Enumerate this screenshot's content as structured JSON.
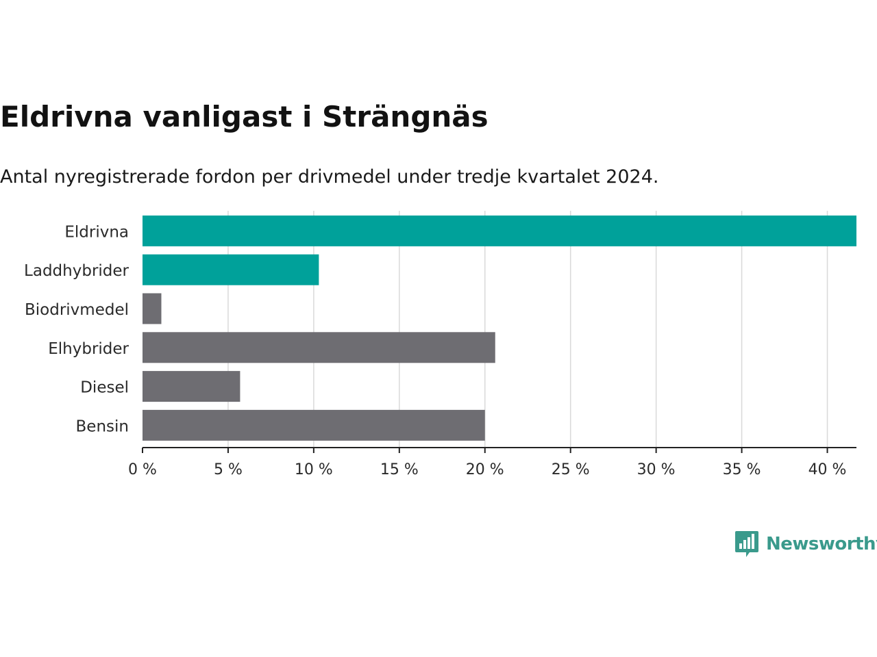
{
  "chart_data": {
    "type": "bar",
    "orientation": "horizontal",
    "title": "Eldrivna vanligast i Strängnäs",
    "subtitle": "Antal nyregistrerade fordon per drivmedel under tredje kvartalet 2024.",
    "categories": [
      "Eldrivna",
      "Laddhybrider",
      "Biodrivmedel",
      "Elhybrider",
      "Diesel",
      "Bensin"
    ],
    "values": [
      41.7,
      10.3,
      1.1,
      20.6,
      5.7,
      20.0
    ],
    "value_unit": "%",
    "xlim": [
      0,
      41.7
    ],
    "xticks": [
      0,
      5,
      10,
      15,
      20,
      25,
      30,
      35,
      40
    ],
    "xtick_labels": [
      "0 %",
      "5 %",
      "10 %",
      "15 %",
      "20 %",
      "25 %",
      "30 %",
      "35 %",
      "40 %"
    ],
    "grid": "vertical",
    "colors": {
      "highlight": "#00a19a",
      "default": "#6e6d72",
      "grid": "#d9d9d9",
      "axis": "#222222",
      "label": "#2a2a2a"
    },
    "highlighted": [
      "Eldrivna",
      "Laddhybrider"
    ]
  },
  "brand": {
    "name": "Newsworthy",
    "icon": "newsworthy-logo-icon",
    "color": "#3a9a8c"
  }
}
